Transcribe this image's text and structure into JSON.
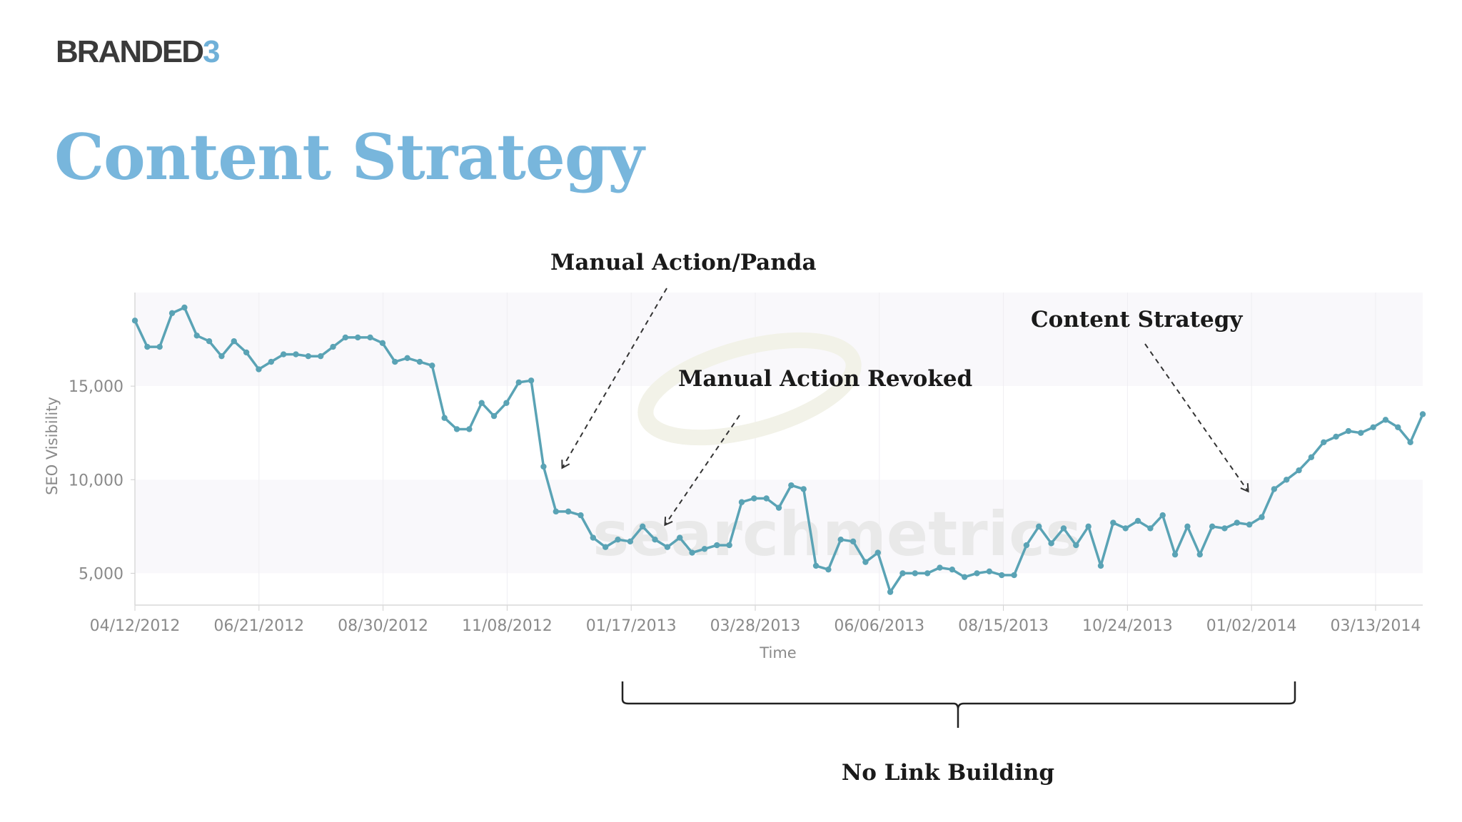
{
  "logo": {
    "text": "BRANDED",
    "accent": "3"
  },
  "slide_title": "Content Strategy",
  "watermark": "searchmetrics",
  "annotations": {
    "manual_action": "Manual Action/Panda",
    "revoked": "Manual Action Revoked",
    "content_strategy": "Content Strategy",
    "no_link_building": "No Link Building"
  },
  "colors": {
    "line": "#5aa3b5",
    "title": "#78b6dc",
    "logo_accent": "#6fb0d8"
  },
  "chart_data": {
    "type": "line",
    "xlabel": "Time",
    "ylabel": "SEO Visibility",
    "ylim": [
      3300,
      20000
    ],
    "yticks": [
      5000,
      10000,
      15000
    ],
    "ytick_labels": [
      "5,000",
      "10,000",
      "15,000"
    ],
    "x_tick_labels": [
      "04/12/2012",
      "06/21/2012",
      "08/30/2012",
      "11/08/2012",
      "01/17/2013",
      "03/28/2013",
      "06/06/2013",
      "08/15/2013",
      "10/24/2013",
      "01/02/2014",
      "03/13/2014"
    ],
    "grid": "horizontal bands",
    "values": [
      18500,
      17100,
      17100,
      18900,
      19200,
      17700,
      17400,
      16600,
      17400,
      16800,
      15900,
      16300,
      16700,
      16700,
      16600,
      16600,
      17100,
      17600,
      17600,
      17600,
      17300,
      16300,
      16500,
      16300,
      16100,
      13300,
      12700,
      12700,
      14100,
      13400,
      14100,
      15200,
      15300,
      10700,
      8300,
      8300,
      8100,
      6900,
      6400,
      6800,
      6700,
      7500,
      6800,
      6400,
      6900,
      6100,
      6300,
      6500,
      6500,
      8800,
      9000,
      9000,
      8500,
      9700,
      9500,
      5400,
      5200,
      6800,
      6700,
      5600,
      6100,
      4000,
      5000,
      5000,
      5000,
      5300,
      5200,
      4800,
      5000,
      5100,
      4900,
      4900,
      6500,
      7500,
      6600,
      7400,
      6500,
      7500,
      5400,
      7700,
      7400,
      7800,
      7400,
      8100,
      6000,
      7500,
      6000,
      7500,
      7400,
      7700,
      7600,
      8000,
      9500,
      10000,
      10500,
      11200,
      12000,
      12300,
      12600,
      12500,
      12800,
      13200,
      12800,
      12000,
      13500
    ]
  }
}
